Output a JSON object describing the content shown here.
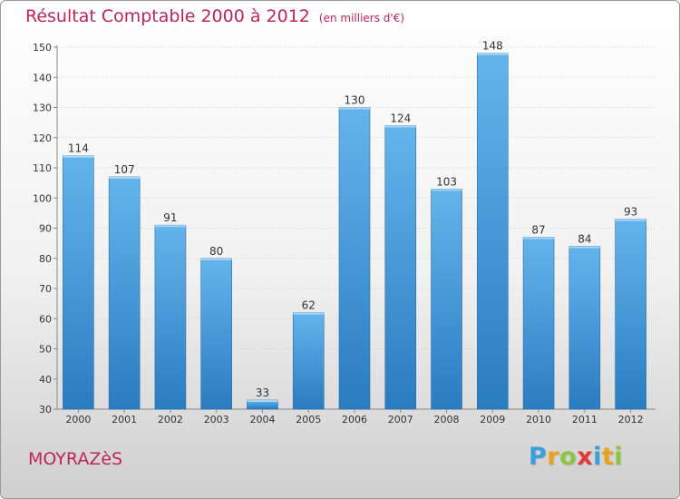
{
  "header": {
    "title": "Résultat Comptable 2000 à 2012",
    "unit": "(en milliers d'€)"
  },
  "footer": {
    "place": "MOYRAZèS",
    "logo": {
      "letters": [
        "P",
        "r",
        "o",
        "x",
        "i",
        "t",
        "i"
      ],
      "colors": [
        "#3aa0dc",
        "#e8a21b",
        "#8cc63f",
        "#e23a3a",
        "#3aa0dc",
        "#e8a21b",
        "#8cc63f"
      ]
    }
  },
  "colors": {
    "bar_light": "#64b4ec",
    "bar_dark": "#2a7cc0",
    "title": "#c0245c"
  },
  "chart_data": {
    "type": "bar",
    "title": "Résultat Comptable 2000 à 2012",
    "categories": [
      "2000",
      "2001",
      "2002",
      "2003",
      "2004",
      "2005",
      "2006",
      "2007",
      "2008",
      "2009",
      "2010",
      "2011",
      "2012"
    ],
    "values": [
      114,
      107,
      91,
      80,
      33,
      62,
      130,
      124,
      103,
      148,
      87,
      84,
      93
    ],
    "ylim": [
      30,
      150
    ],
    "yticks": [
      30,
      40,
      50,
      60,
      70,
      80,
      90,
      100,
      110,
      120,
      130,
      140,
      150
    ],
    "grid": true,
    "legend": "none"
  }
}
